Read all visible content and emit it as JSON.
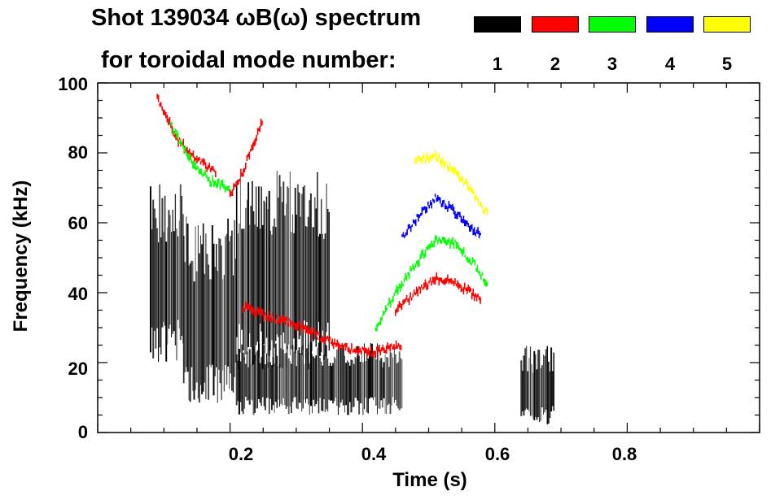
{
  "title_line1": "Shot 139034 ωB(ω) spectrum",
  "title_line2": "for toroidal mode number:",
  "legend": [
    {
      "label": "1",
      "color": "#000000"
    },
    {
      "label": "2",
      "color": "#ff0000"
    },
    {
      "label": "3",
      "color": "#00ff00"
    },
    {
      "label": "4",
      "color": "#0000ff"
    },
    {
      "label": "5",
      "color": "#ffff00"
    }
  ],
  "chart_data": {
    "type": "heatmap",
    "xlabel": "Time (s)",
    "ylabel": "Frequency (kHz)",
    "xlim": [
      0.0,
      1.0
    ],
    "ylim": [
      0,
      100
    ],
    "x_ticks": [
      "0.2",
      "0.4",
      "0.6",
      "0.8"
    ],
    "y_ticks": [
      "0",
      "20",
      "40",
      "60",
      "80",
      "100"
    ],
    "series": [
      {
        "name": "1",
        "color": "#000000",
        "regions": [
          {
            "t": [
              0.08,
              0.13
            ],
            "f": [
              20,
              72
            ]
          },
          {
            "t": [
              0.13,
              0.21
            ],
            "f": [
              8,
              62
            ]
          },
          {
            "t": [
              0.21,
              0.35
            ],
            "f": [
              18,
              75
            ]
          },
          {
            "t": [
              0.21,
              0.46
            ],
            "f": [
              5,
              26
            ]
          },
          {
            "t": [
              0.64,
              0.69
            ],
            "f": [
              2,
              25
            ]
          }
        ]
      },
      {
        "name": "2",
        "color": "#ff0000",
        "tracks": [
          {
            "t": [
              0.09,
              0.12,
              0.15,
              0.18
            ],
            "f": [
              96,
              84,
              78,
              74
            ]
          },
          {
            "t": [
              0.2,
              0.22,
              0.24,
              0.25
            ],
            "f": [
              68,
              75,
              85,
              90
            ]
          },
          {
            "t": [
              0.22,
              0.26,
              0.3,
              0.34,
              0.38,
              0.42,
              0.46
            ],
            "f": [
              36,
              33,
              31,
              27,
              24,
              23,
              25
            ]
          },
          {
            "t": [
              0.45,
              0.48,
              0.51,
              0.54,
              0.58
            ],
            "f": [
              35,
              40,
              44,
              43,
              38
            ]
          }
        ]
      },
      {
        "name": "3",
        "color": "#00ff00",
        "tracks": [
          {
            "t": [
              0.11,
              0.14,
              0.17,
              0.2
            ],
            "f": [
              88,
              78,
              72,
              70
            ]
          },
          {
            "t": [
              0.42,
              0.45,
              0.48,
              0.51,
              0.54,
              0.57,
              0.59
            ],
            "f": [
              30,
              40,
              48,
              55,
              54,
              48,
              42
            ]
          }
        ]
      },
      {
        "name": "4",
        "color": "#0000ff",
        "tracks": [
          {
            "t": [
              0.46,
              0.49,
              0.51,
              0.54,
              0.58
            ],
            "f": [
              56,
              63,
              67,
              63,
              56
            ]
          }
        ]
      },
      {
        "name": "5",
        "color": "#ffff00",
        "tracks": [
          {
            "t": [
              0.48,
              0.51,
              0.54,
              0.57,
              0.59
            ],
            "f": [
              78,
              79,
              75,
              68,
              62
            ]
          }
        ]
      }
    ]
  }
}
